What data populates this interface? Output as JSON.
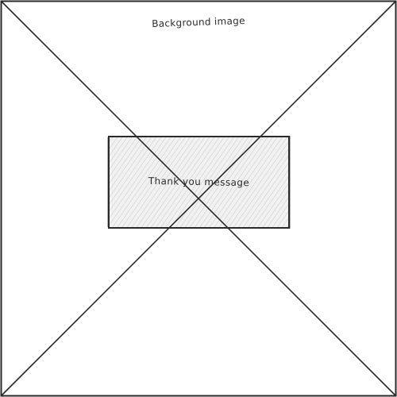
{
  "wireframe": {
    "background_label": "Background image",
    "message_label": "Thank you message"
  }
}
